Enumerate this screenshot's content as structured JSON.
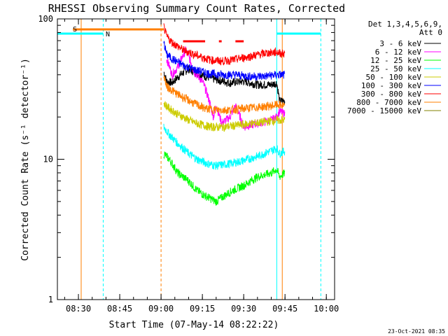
{
  "chart_data": {
    "type": "line",
    "title": "RHESSI Observing Summary Count Rates, Corrected",
    "xlabel": "Start Time (07-May-14 08:22:22)",
    "ylabel": "Corrected Count Rate (s⁻¹ detector⁻¹)",
    "x_range": [
      "08:22:22",
      "10:03:00"
    ],
    "x_ticks": [
      "08:30",
      "08:45",
      "09:00",
      "09:15",
      "09:30",
      "09:45",
      "10:00"
    ],
    "y_scale": "log",
    "ylim": [
      1,
      100
    ],
    "y_ticks": [
      "1",
      "10",
      "100"
    ],
    "legend_header": [
      "Det 1,3,4,5,6,9,",
      "Att 0"
    ],
    "legend_position": "top-right",
    "footer_timestamp": "23-Oct-2021 08:35",
    "series": [
      {
        "name": "3 - 6 keV",
        "color": "#000000",
        "points": [
          [
            "09:01",
            42
          ],
          [
            "09:02",
            36
          ],
          [
            "09:04",
            35
          ],
          [
            "09:07",
            40
          ],
          [
            "09:10",
            44
          ],
          [
            "09:13",
            41
          ],
          [
            "09:16",
            39
          ],
          [
            "09:20",
            37
          ],
          [
            "09:25",
            35
          ],
          [
            "09:30",
            36
          ],
          [
            "09:35",
            34
          ],
          [
            "09:40",
            34
          ],
          [
            "09:42",
            35
          ],
          [
            "09:43",
            26
          ],
          [
            "09:45",
            26
          ]
        ]
      },
      {
        "name": "6 - 12 keV",
        "color": "#ff00ff",
        "points": [
          [
            "09:02",
            52
          ],
          [
            "09:04",
            40
          ],
          [
            "09:06",
            45
          ],
          [
            "09:09",
            60
          ],
          [
            "09:12",
            42
          ],
          [
            "09:15",
            36
          ],
          [
            "09:17",
            28
          ],
          [
            "09:19",
            20
          ],
          [
            "09:20",
            24
          ],
          [
            "09:22",
            18
          ],
          [
            "09:25",
            20
          ],
          [
            "09:27",
            24
          ],
          [
            "09:30",
            17
          ],
          [
            "09:35",
            18
          ],
          [
            "09:40",
            19
          ],
          [
            "09:42",
            20
          ],
          [
            "09:43",
            22
          ],
          [
            "09:45",
            21
          ]
        ]
      },
      {
        "name": "12 - 25 keV",
        "color": "#00ff00",
        "points": [
          [
            "09:01",
            11
          ],
          [
            "09:03",
            10
          ],
          [
            "09:06",
            8
          ],
          [
            "09:10",
            7
          ],
          [
            "09:13",
            6
          ],
          [
            "09:16",
            5.5
          ],
          [
            "09:20",
            5
          ],
          [
            "09:23",
            5.5
          ],
          [
            "09:26",
            6
          ],
          [
            "09:30",
            6.5
          ],
          [
            "09:35",
            7.5
          ],
          [
            "09:40",
            8
          ],
          [
            "09:42",
            8.5
          ],
          [
            "09:43",
            7.5
          ],
          [
            "09:45",
            8
          ]
        ]
      },
      {
        "name": "25 - 50 keV",
        "color": "#00ffff",
        "points": [
          [
            "09:01",
            17
          ],
          [
            "09:03",
            15
          ],
          [
            "09:06",
            13
          ],
          [
            "09:10",
            11
          ],
          [
            "09:13",
            10
          ],
          [
            "09:17",
            9.3
          ],
          [
            "09:20",
            9
          ],
          [
            "09:25",
            9.3
          ],
          [
            "09:30",
            9.8
          ],
          [
            "09:35",
            10.5
          ],
          [
            "09:40",
            11.5
          ],
          [
            "09:42",
            12
          ],
          [
            "09:43",
            11
          ],
          [
            "09:45",
            11.5
          ]
        ]
      },
      {
        "name": "50 - 100 keV",
        "color": "#cccc00",
        "points": [
          [
            "09:01",
            25
          ],
          [
            "09:03",
            23
          ],
          [
            "09:06",
            21
          ],
          [
            "09:10",
            19
          ],
          [
            "09:13",
            18
          ],
          [
            "09:18",
            17
          ],
          [
            "09:23",
            17
          ],
          [
            "09:28",
            17.5
          ],
          [
            "09:33",
            18
          ],
          [
            "09:38",
            18.5
          ],
          [
            "09:42",
            19
          ],
          [
            "09:45",
            19
          ]
        ]
      },
      {
        "name": "100 - 300 keV",
        "color": "#0000ff",
        "points": [
          [
            "09:01",
            68
          ],
          [
            "09:02",
            56
          ],
          [
            "09:04",
            52
          ],
          [
            "09:07",
            48
          ],
          [
            "09:10",
            45
          ],
          [
            "09:13",
            43
          ],
          [
            "09:17",
            41
          ],
          [
            "09:22",
            40
          ],
          [
            "09:27",
            40
          ],
          [
            "09:32",
            39
          ],
          [
            "09:37",
            39
          ],
          [
            "09:42",
            40
          ],
          [
            "09:45",
            40
          ]
        ]
      },
      {
        "name": "300 - 800 keV",
        "color": "#ff0000",
        "points": [
          [
            "09:01",
            88
          ],
          [
            "09:02",
            75
          ],
          [
            "09:04",
            68
          ],
          [
            "09:06",
            64
          ],
          [
            "09:08",
            60
          ],
          [
            "09:11",
            57
          ],
          [
            "09:14",
            54
          ],
          [
            "09:18",
            51
          ],
          [
            "09:22",
            50
          ],
          [
            "09:26",
            51
          ],
          [
            "09:30",
            53
          ],
          [
            "09:34",
            55
          ],
          [
            "09:38",
            57
          ],
          [
            "09:42",
            58
          ],
          [
            "09:45",
            56
          ]
        ]
      },
      {
        "name": "800 - 7000 keV",
        "color": "#ff7f00",
        "points": [
          [
            "09:01",
            40
          ],
          [
            "09:02",
            33
          ],
          [
            "09:04",
            31
          ],
          [
            "09:06",
            29
          ],
          [
            "09:09",
            27
          ],
          [
            "09:12",
            25
          ],
          [
            "09:16",
            23
          ],
          [
            "09:20",
            22.5
          ],
          [
            "09:25",
            22.5
          ],
          [
            "09:30",
            23
          ],
          [
            "09:35",
            23.5
          ],
          [
            "09:40",
            24
          ],
          [
            "09:42",
            24.5
          ],
          [
            "09:45",
            24
          ]
        ]
      },
      {
        "name": "7000 - 15000 keV",
        "color": "#808000",
        "points": []
      }
    ],
    "markers": {
      "night_start_times": [
        "08:31",
        "09:00",
        "09:44"
      ],
      "saa_start_times": [
        "08:39",
        "09:42",
        "09:58"
      ],
      "night_color": "#ff7f00",
      "saa_color": "#00ffff",
      "bar_labels": [
        "S",
        "N"
      ],
      "night_bar": [
        "08:28",
        "09:01"
      ],
      "saa_bars": [
        [
          "08:22:22",
          "08:39"
        ],
        [
          "09:42",
          "09:58"
        ]
      ],
      "flare_bars": [
        [
          "09:08",
          "09:16"
        ],
        [
          "09:21",
          "09:22"
        ],
        [
          "09:27",
          "09:30"
        ]
      ]
    }
  }
}
